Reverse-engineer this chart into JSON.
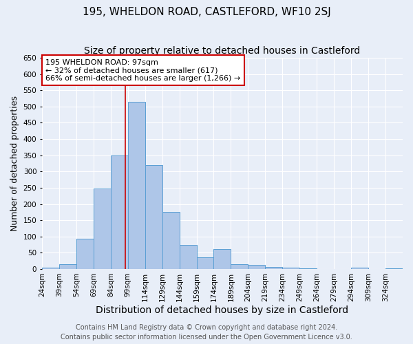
{
  "title": "195, WHELDON ROAD, CASTLEFORD, WF10 2SJ",
  "subtitle": "Size of property relative to detached houses in Castleford",
  "xlabel": "Distribution of detached houses by size in Castleford",
  "ylabel": "Number of detached properties",
  "footnote1": "Contains HM Land Registry data © Crown copyright and database right 2024.",
  "footnote2": "Contains public sector information licensed under the Open Government Licence v3.0.",
  "bar_labels": [
    "24sqm",
    "39sqm",
    "54sqm",
    "69sqm",
    "84sqm",
    "99sqm",
    "114sqm",
    "129sqm",
    "144sqm",
    "159sqm",
    "174sqm",
    "189sqm",
    "204sqm",
    "219sqm",
    "234sqm",
    "249sqm",
    "264sqm",
    "279sqm",
    "294sqm",
    "309sqm",
    "324sqm"
  ],
  "bar_values": [
    5,
    15,
    93,
    247,
    350,
    515,
    320,
    175,
    75,
    35,
    62,
    15,
    13,
    7,
    4,
    1,
    0,
    0,
    4,
    0,
    3
  ],
  "bar_color": "#aec6e8",
  "bar_edge_color": "#5a9fd4",
  "annotation_line1": "195 WHELDON ROAD: 97sqm",
  "annotation_line2": "← 32% of detached houses are smaller (617)",
  "annotation_line3": "66% of semi-detached houses are larger (1,266) →",
  "annotation_box_color": "#ffffff",
  "annotation_box_edge_color": "#cc0000",
  "property_line_x": 97,
  "property_line_color": "#cc0000",
  "ylim": [
    0,
    650
  ],
  "yticks": [
    0,
    50,
    100,
    150,
    200,
    250,
    300,
    350,
    400,
    450,
    500,
    550,
    600,
    650
  ],
  "background_color": "#e8eef8",
  "plot_background_color": "#e8eef8",
  "title_fontsize": 11,
  "subtitle_fontsize": 10,
  "ylabel_fontsize": 9,
  "xlabel_fontsize": 10,
  "tick_fontsize": 7.5,
  "annot_fontsize": 8,
  "footnote_fontsize": 7
}
